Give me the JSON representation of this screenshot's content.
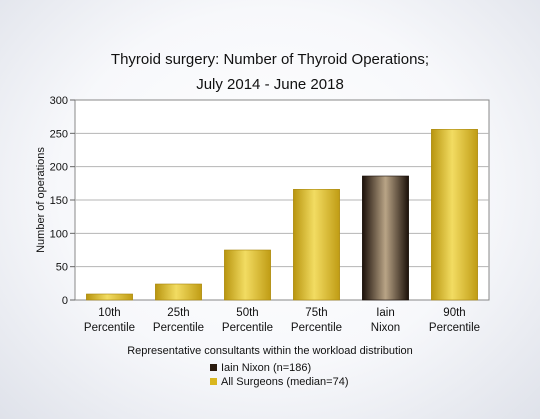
{
  "chart_data": {
    "type": "bar",
    "title_lines": [
      "Thyroid surgery: Number of Thyroid Operations;",
      "July 2014 - June 2018"
    ],
    "xlabel": "Representative consultants within the workload distribution",
    "ylabel": "Number of operations",
    "ylim": [
      0,
      300
    ],
    "yticks": [
      0,
      50,
      100,
      150,
      200,
      250,
      300
    ],
    "grid": true,
    "categories": [
      [
        "10th",
        "Percentile"
      ],
      [
        "25th",
        "Percentile"
      ],
      [
        "50th",
        "Percentile"
      ],
      [
        "75th",
        "Percentile"
      ],
      [
        "Iain",
        "Nixon"
      ],
      [
        "90th",
        "Percentile"
      ]
    ],
    "values": [
      9,
      24,
      75,
      166,
      186,
      256
    ],
    "highlight_index": 4,
    "colors": {
      "all": "#d9b61f",
      "highlight": "#2a1a0e"
    },
    "legend": [
      {
        "label": "Iain Nixon (n=186)",
        "color": "#2a1a0e"
      },
      {
        "label": "All Surgeons (median=74)",
        "color": "#d9b61f"
      }
    ],
    "legend_position": "bottom"
  }
}
